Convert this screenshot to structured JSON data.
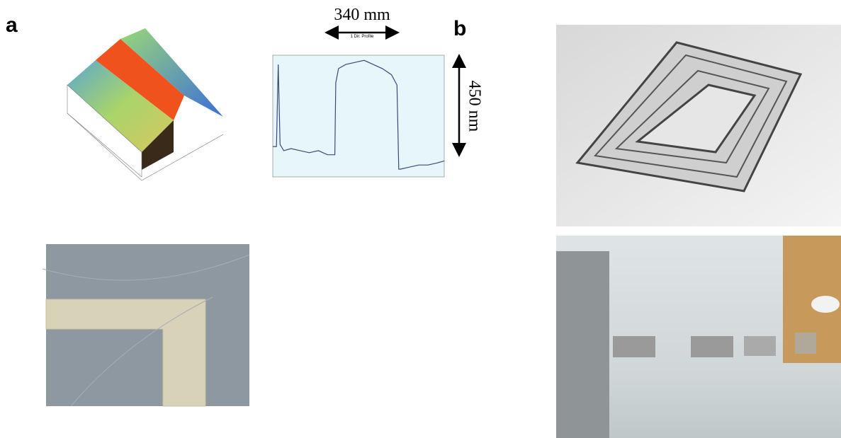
{
  "panel_a": {
    "label": "a",
    "width_label": "340 mm",
    "height_label": "450 nm",
    "profile_label": "1 Dir. Profile"
  },
  "panel_b": {
    "label": "b"
  },
  "chart_data": {
    "type": "line",
    "x": [
      0,
      0.02,
      0.03,
      0.04,
      0.06,
      0.1,
      0.15,
      0.2,
      0.25,
      0.3,
      0.34,
      0.345,
      0.36,
      0.4,
      0.45,
      0.5,
      0.55,
      0.6,
      0.65,
      0.68,
      0.69,
      0.7,
      0.75,
      0.8,
      0.85,
      0.9,
      0.939
    ],
    "series": [
      {
        "color": "#3a4a7a",
        "values": [
          0.02,
          0.02,
          0.42,
          0.03,
          0,
          0.01,
          0,
          -0.01,
          0,
          -0.02,
          -0.02,
          0.33,
          0.4,
          0.42,
          0.43,
          0.44,
          0.42,
          0.4,
          0.37,
          0.32,
          -0.09,
          -0.09,
          -0.08,
          -0.07,
          -0.07,
          -0.06,
          -0.05
        ]
      }
    ],
    "xlim": [
      0,
      0.939
    ],
    "ylim": [
      -0.128,
      0.465
    ]
  }
}
